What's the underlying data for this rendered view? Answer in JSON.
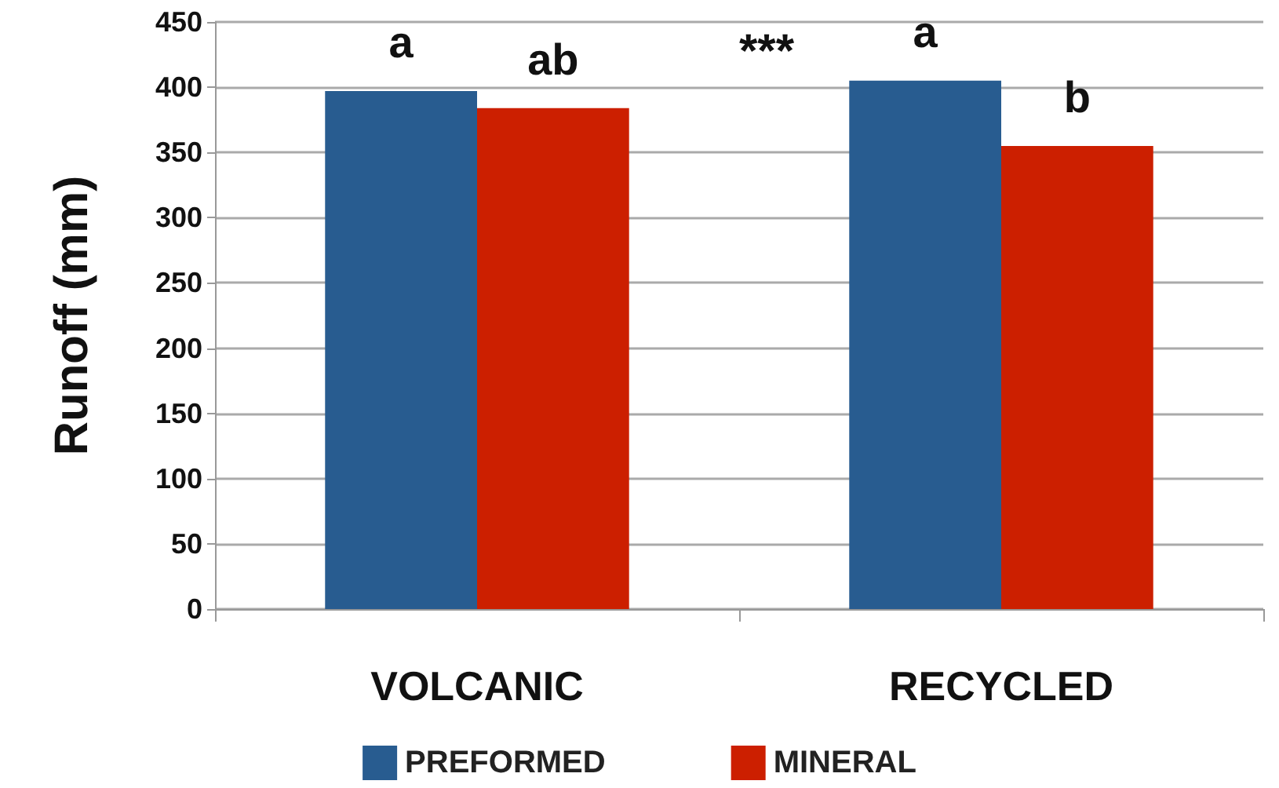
{
  "chart_data": {
    "type": "bar",
    "ylabel": "Runoff (mm)",
    "categories": [
      "VOLCANIC",
      "RECYCLED"
    ],
    "series": [
      {
        "name": "PREFORMED",
        "color": "#285c90",
        "values": [
          397,
          405
        ]
      },
      {
        "name": "MINERAL",
        "color": "#cc1f00",
        "values": [
          384,
          355
        ]
      }
    ],
    "ylim": [
      0,
      450
    ],
    "yticks": [
      0,
      50,
      100,
      150,
      200,
      250,
      300,
      350,
      400,
      450
    ],
    "grid": "y",
    "legend": "bottom",
    "annotations": [
      "a",
      "ab",
      "a",
      "b",
      "***"
    ]
  }
}
